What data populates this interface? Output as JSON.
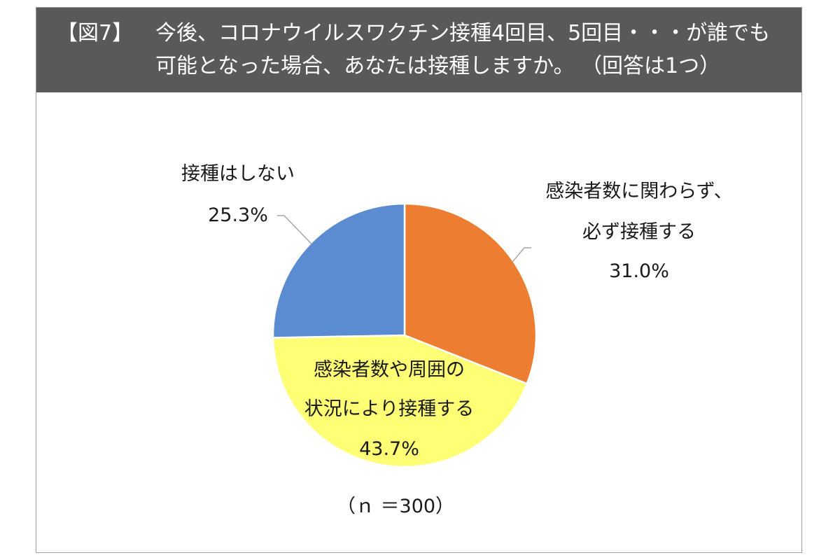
{
  "header": {
    "prefix": "【図7】",
    "line1": "今後、コロナウイルスワクチン接種4回目、5回目・・・が誰でも",
    "line2": "可能となった場合、あなたは接種しますか。 （回答は1つ）"
  },
  "chart_data": {
    "type": "pie",
    "start_angle_deg": 0,
    "direction": "clockwise",
    "slices": [
      {
        "label_lines": [
          "感染者数に関わらず、",
          "必ず接種する"
        ],
        "value": 31.0,
        "value_label": "31.0%",
        "color": "#ED7D31"
      },
      {
        "label_lines": [
          "感染者数や周囲の",
          "状況により接種する"
        ],
        "value": 43.7,
        "value_label": "43.7%",
        "color": "#FFFF75"
      },
      {
        "label_lines": [
          "接種はしない"
        ],
        "value": 25.3,
        "value_label": "25.3%",
        "color": "#5B8BD0"
      }
    ],
    "note": "（ｎ ＝300）"
  },
  "colors": {
    "header_bg": "#595959",
    "border": "#9e9e9e",
    "leader": "#a6a6a6"
  }
}
